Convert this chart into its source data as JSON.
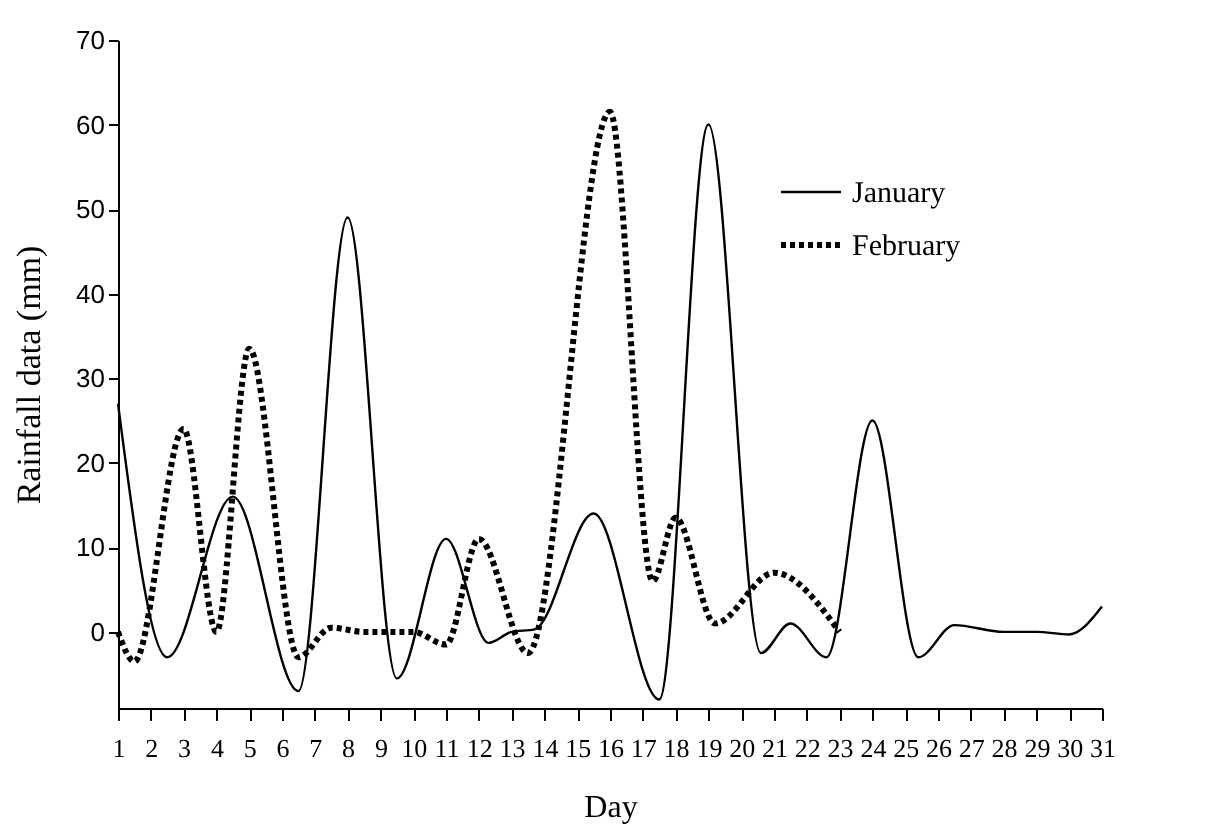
{
  "chart_data": {
    "type": "line",
    "xlabel": "Day",
    "ylabel": "Rainfall data (mm)",
    "xlim": [
      1,
      31
    ],
    "xticks": [
      1,
      2,
      3,
      4,
      5,
      6,
      7,
      8,
      9,
      10,
      11,
      12,
      13,
      14,
      15,
      16,
      17,
      18,
      19,
      20,
      21,
      22,
      23,
      24,
      25,
      26,
      27,
      28,
      29,
      30,
      31
    ],
    "ylim": [
      -9,
      70
    ],
    "yticks": [
      0,
      10,
      20,
      30,
      40,
      50,
      60,
      70
    ],
    "grid": false,
    "legend": "top right",
    "series": [
      {
        "name": "January",
        "color": "#000000",
        "line_style": "solid",
        "x": [
          1,
          2.5,
          4.5,
          6.5,
          8,
          9.5,
          11,
          12.3,
          13,
          13.7,
          15.5,
          17.5,
          19,
          20.6,
          21.5,
          22.6,
          24,
          25.4,
          26.5,
          28,
          29,
          30,
          31
        ],
        "values": [
          27,
          -3,
          16,
          -7,
          49,
          -5.5,
          11,
          -1.3,
          0,
          0.3,
          14,
          -8,
          60,
          -2.5,
          1,
          -3,
          25,
          -3,
          0.8,
          0,
          0,
          -0.3,
          3
        ]
      },
      {
        "name": "February",
        "color": "#000000",
        "line_style": "dotted",
        "x": [
          1,
          1.5,
          3,
          4,
          5,
          6.5,
          7.5,
          8.5,
          10,
          11,
          12,
          13.5,
          16,
          17.3,
          18,
          19.2,
          21,
          23
        ],
        "values": [
          0,
          -3.5,
          24,
          0,
          33.5,
          -3,
          0.5,
          0,
          0,
          -1.5,
          11,
          -2.5,
          61.5,
          6,
          13.5,
          1,
          7,
          0
        ]
      }
    ]
  }
}
